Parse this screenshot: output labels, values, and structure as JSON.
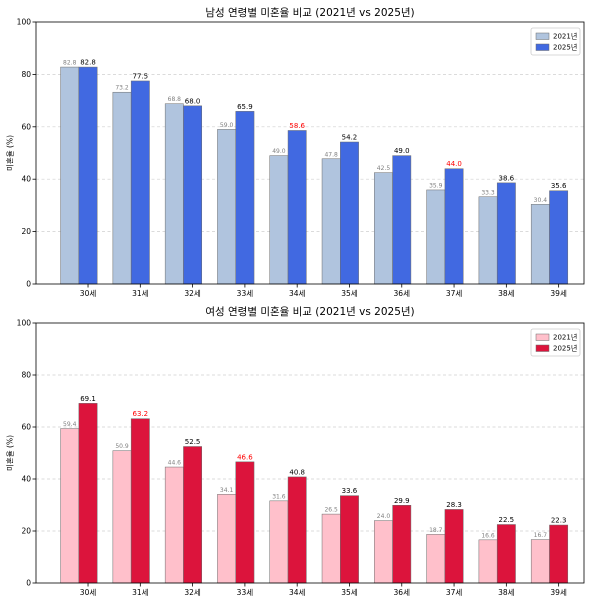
{
  "chart_data": [
    {
      "type": "bar",
      "title": "남성 연령별 미혼율 비교 (2021년 vs 2025년)",
      "ylabel": "미혼율 (%)",
      "ylim": [
        0,
        100
      ],
      "yticks": [
        0,
        20,
        40,
        60,
        80,
        100
      ],
      "grid": true,
      "legend": "top-right",
      "categories": [
        "30세",
        "31세",
        "32세",
        "33세",
        "34세",
        "35세",
        "36세",
        "37세",
        "38세",
        "39세"
      ],
      "series": [
        {
          "name": "2021년",
          "color": "#b0c4de",
          "label_color": "#808080",
          "values": [
            82.8,
            73.2,
            68.8,
            59.0,
            49.0,
            47.8,
            42.5,
            35.9,
            33.3,
            30.4
          ],
          "highlight_indices": []
        },
        {
          "name": "2025년",
          "color": "#4169e1",
          "label_color": "#000000",
          "values": [
            82.8,
            77.5,
            68.0,
            65.9,
            58.6,
            54.2,
            49.0,
            44.0,
            38.6,
            35.6
          ],
          "highlight_color": "#ff0000",
          "highlight_indices": [
            4,
            7
          ]
        }
      ]
    },
    {
      "type": "bar",
      "title": "여성 연령별 미혼율 비교 (2021년 vs 2025년)",
      "ylabel": "미혼율 (%)",
      "ylim": [
        0,
        100
      ],
      "yticks": [
        0,
        20,
        40,
        60,
        80,
        100
      ],
      "grid": true,
      "legend": "top-right",
      "categories": [
        "30세",
        "31세",
        "32세",
        "33세",
        "34세",
        "35세",
        "36세",
        "37세",
        "38세",
        "39세"
      ],
      "series": [
        {
          "name": "2021년",
          "color": "#ffc0cb",
          "label_color": "#808080",
          "values": [
            59.4,
            50.9,
            44.6,
            34.1,
            31.6,
            26.5,
            24.0,
            18.7,
            16.6,
            16.7
          ],
          "highlight_indices": []
        },
        {
          "name": "2025년",
          "color": "#dc143c",
          "label_color": "#000000",
          "values": [
            69.1,
            63.2,
            52.5,
            46.6,
            40.8,
            33.6,
            29.9,
            28.3,
            22.5,
            22.3
          ],
          "highlight_color": "#ff0000",
          "highlight_indices": [
            1,
            3
          ]
        }
      ]
    }
  ]
}
